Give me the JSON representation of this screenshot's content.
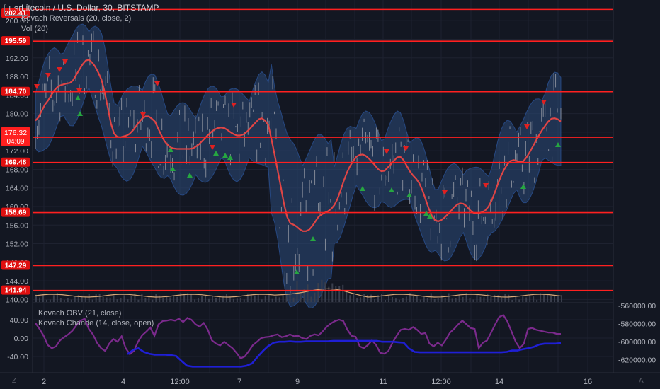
{
  "header": {
    "symbol_title": "Litecoin / U.S. Dollar, 30, BITSTAMP",
    "indicator_1": "Kovach Reversals (20, close, 2)",
    "indicator_2": "Vol (20)",
    "currency_button": "USD",
    "osc_indicator_1": "Kovach OBV (21, close)",
    "osc_indicator_2": "Kovach Chande (14, close, open)"
  },
  "footer": {
    "left_button": "Z",
    "right_button": "A"
  },
  "colors": {
    "background": "#131722",
    "grid": "#1e2230",
    "candle": "#9a9ea8",
    "ma_line": "#e04545",
    "band": "#2c4a7a",
    "level_line": "#ff2020",
    "up_arrow": "#26a641",
    "down_arrow": "#e02020",
    "volume_ma": "#d9a878",
    "obv": "#1f1fd6",
    "chande": "#7b2a8c"
  },
  "chart_data": [
    {
      "type": "line",
      "title": "Litecoin / U.S. Dollar, 30, BITSTAMP",
      "x_tick_labels": [
        "2",
        "4",
        "12:00",
        "7",
        "9",
        "11",
        "12:00",
        "14",
        "16"
      ],
      "y_tick_labels": [
        "140.00",
        "144.00",
        "148.00",
        "152.00",
        "156.00",
        "160.00",
        "164.00",
        "168.00",
        "172.00",
        "176.00",
        "180.00",
        "184.00",
        "188.00",
        "192.00",
        "196.00",
        "200.00"
      ],
      "ylim": [
        139.5,
        203
      ],
      "horizontal_levels": [
        202.41,
        195.59,
        184.7,
        174.91,
        169.48,
        158.69,
        147.29,
        141.94
      ],
      "last_price_label": "176.32",
      "countdown_label": "04:09",
      "series": [
        {
          "values": [
            178.5,
            179.2,
            180.6,
            181.9,
            182.8,
            183.9,
            185.0,
            185.7,
            186.1,
            186.3,
            186.5,
            186.6,
            187.2,
            188.4,
            189.5,
            190.6,
            191.4,
            191.6,
            191.0,
            190.1,
            188.8,
            187.3,
            184.7,
            181.3,
            177.9,
            175.7,
            175.0,
            174.9,
            175.1,
            175.3,
            175.7,
            176.4,
            177.3,
            178.2,
            179.0,
            179.4,
            179.4,
            178.9,
            178.3,
            176.8,
            175.4,
            174.1,
            173.3,
            172.7,
            172.5,
            172.4,
            172.4,
            172.4,
            172.4,
            172.4,
            172.5,
            172.9,
            173.4,
            174.1,
            174.8,
            175.5,
            176.1,
            176.6,
            176.9,
            177.0,
            176.9,
            176.5,
            176.0,
            175.6,
            175.3,
            175.3,
            175.5,
            176.0,
            176.6,
            177.4,
            178.1,
            178.8,
            179.0,
            178.5,
            177.6,
            174.6,
            171.2,
            167.8,
            164.2,
            160.6,
            157.8,
            156.4,
            156.1,
            155.7,
            155.1,
            154.7,
            154.7,
            155.0,
            155.8,
            156.8,
            157.8,
            158.3,
            158.7,
            159.0,
            159.5,
            160.3,
            161.6,
            163.5,
            165.5,
            167.3,
            168.7,
            169.8,
            170.7,
            171.1,
            171.2,
            170.9,
            170.3,
            169.6,
            168.8,
            168.0,
            167.6,
            167.7,
            168.4,
            169.1,
            169.9,
            170.6,
            170.7,
            170.0,
            168.8,
            167.6,
            166.7,
            166.0,
            165.0,
            163.5,
            161.6,
            159.6,
            158.0,
            157.1,
            156.8,
            157.1,
            157.6,
            158.3,
            159.0,
            159.8,
            160.4,
            160.7,
            160.6,
            160.1,
            159.3,
            158.7,
            158.5,
            158.6,
            158.8,
            159.2,
            160.0,
            161.3,
            163.0,
            164.9,
            166.6,
            168.0,
            169.1,
            169.8,
            170.0,
            169.8,
            169.6,
            169.7,
            170.5,
            171.6,
            172.8,
            174.1,
            175.3,
            176.4,
            177.4,
            178.3,
            178.9,
            179.0,
            178.8,
            178.3
          ]
        }
      ]
    },
    {
      "type": "line",
      "y_tick_labels": [
        "40.00",
        "0.00",
        "-40.00"
      ],
      "right_tick_labels": [
        "-560000.00",
        "-580000.00",
        "-600000.00",
        "-620000.00"
      ],
      "series": [
        {
          "name": "Kovach OBV (21, close)",
          "values": [
            -35.0,
            -26.0,
            -22.0,
            -30.0,
            -34.0,
            -36.0,
            -36.0,
            -36.0,
            -37.0,
            -39.0,
            -50.0,
            -60.0,
            -62.0,
            -62.0,
            -62.0,
            -62.0,
            -62.0,
            -62.0,
            -62.0,
            -62.0,
            -62.0,
            -62.0,
            -60.0,
            -55.0,
            -41.0,
            -28.0,
            -17.0,
            -10.0,
            -8.0,
            -8.0,
            -7.0,
            -8.0,
            -8.0,
            -7.0,
            -7.0,
            -7.0,
            -7.0,
            -7.0,
            -6.0,
            -6.0,
            -6.0,
            -6.0,
            -6.0,
            -6.0,
            -6.0,
            -6.0,
            -6.0,
            -8.0,
            -8.0,
            -8.0,
            -9.0,
            -10.0,
            -23.0,
            -30.0,
            -31.0,
            -31.0,
            -31.0,
            -31.0,
            -31.0,
            -31.0,
            -31.0,
            -31.0,
            -31.0,
            -31.0,
            -31.0,
            -31.0,
            -31.0,
            -31.0,
            -31.0,
            -31.0,
            -30.0,
            -27.0,
            -27.0,
            -24.0,
            -22.0,
            -19.0,
            -14.0,
            -12.0,
            -12.0,
            -12.0,
            -11.0
          ]
        },
        {
          "name": "Kovach Chande (14, close, open)",
          "values": [
            33,
            20,
            5,
            -15,
            -22,
            -18,
            -5,
            2,
            8,
            16,
            28,
            38,
            42,
            20,
            8,
            -10,
            -22,
            -28,
            -12,
            -2,
            -8,
            4,
            -22,
            -35,
            -28,
            -8,
            6,
            14,
            23,
            5,
            30,
            37,
            38,
            40,
            38,
            42,
            35,
            44,
            40,
            30,
            25,
            33,
            18,
            -5,
            -12,
            -16,
            -8,
            -15,
            -22,
            -32,
            -44,
            -40,
            -28,
            -15,
            -8,
            0,
            2,
            3,
            6,
            8,
            2,
            4,
            8,
            4,
            5,
            0,
            -2,
            5,
            8,
            6,
            15,
            25,
            32,
            37,
            40,
            37,
            18,
            5,
            3,
            -18,
            -22,
            -15,
            -5,
            -15,
            -32,
            -34,
            -28,
            -10,
            5,
            18,
            20,
            18,
            24,
            18,
            9,
            11,
            -12,
            -18,
            -10,
            -16,
            -3,
            12,
            20,
            30,
            38,
            30,
            22,
            20,
            -22,
            -10,
            -5,
            12,
            30,
            46,
            50,
            36,
            14,
            -8,
            -22,
            -12,
            20,
            22,
            18,
            16,
            14,
            12,
            12,
            9,
            9
          ]
        }
      ]
    }
  ]
}
